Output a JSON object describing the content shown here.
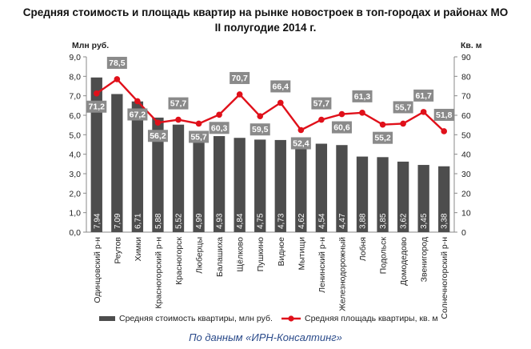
{
  "chart_data": {
    "type": "bar",
    "title_lines": [
      "Средняя стоимость и площадь квартир на рынке новостроек в топ-городах и районах МО",
      "II полугодие 2014 г."
    ],
    "ylabel": "Млн руб.",
    "y2label": "Кв. м",
    "ylim": [
      0,
      9
    ],
    "y2lim": [
      0,
      90
    ],
    "y_ticks": [
      "0,0",
      "1,0",
      "2,0",
      "3,0",
      "4,0",
      "5,0",
      "6,0",
      "7,0",
      "8,0",
      "9,0"
    ],
    "y2_ticks": [
      "0",
      "10",
      "20",
      "30",
      "40",
      "50",
      "60",
      "70",
      "80",
      "90"
    ],
    "categories": [
      "Одинцовский р-н",
      "Реутов",
      "Химки",
      "Красногорский р-н",
      "Красногорск",
      "Люберцы",
      "Балашиха",
      "Щёлково",
      "Пушкино",
      "Видное",
      "Мытищи",
      "Ленинский р-н",
      "Железнодорожный",
      "Лобня",
      "Подольск",
      "Домодедово",
      "Звенигород",
      "Солнечногорский р-н"
    ],
    "series": [
      {
        "name": "Средняя стоимость квартиры, млн руб.",
        "type": "bar",
        "axis": "left",
        "color": "#4d4d4d",
        "values": [
          7.94,
          7.09,
          6.71,
          5.88,
          5.52,
          4.99,
          4.93,
          4.84,
          4.75,
          4.73,
          4.62,
          4.54,
          4.47,
          3.88,
          3.85,
          3.62,
          3.45,
          3.38
        ],
        "labels": [
          "7,94",
          "7,09",
          "6,71",
          "5,88",
          "5,52",
          "4,99",
          "4,93",
          "4,84",
          "4,75",
          "4,73",
          "4,62",
          "4,54",
          "4,47",
          "3,88",
          "3,85",
          "3,62",
          "3,45",
          "3,38"
        ]
      },
      {
        "name": "Средняя площадь квартиры, кв. м",
        "type": "line",
        "axis": "right",
        "color": "#e0101a",
        "values": [
          71.2,
          78.5,
          67.2,
          56.2,
          57.7,
          55.7,
          60.3,
          70.7,
          59.5,
          66.4,
          52.4,
          57.7,
          60.6,
          61.3,
          55.2,
          55.7,
          61.7,
          51.8
        ],
        "labels": [
          "71,2",
          "78,5",
          "67,2",
          "56,2",
          "57,7",
          "55,7",
          "60,3",
          "70,7",
          "59,5",
          "66,4",
          "52,4",
          "57,7",
          "60,6",
          "61,3",
          "55,2",
          "55,7",
          "61,7",
          "51,8"
        ]
      }
    ],
    "grid": false,
    "legend_position": "bottom",
    "source": "По данным «ИРН-Консалтинг»"
  }
}
